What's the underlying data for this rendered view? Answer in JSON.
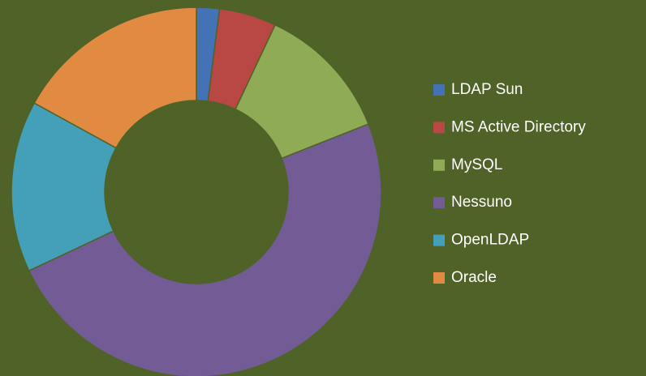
{
  "chart_data": {
    "type": "donut",
    "categories": [
      "LDAP Sun",
      "MS Active Directory",
      "MySQL",
      "Nessuno",
      "OpenLDAP",
      "Oracle"
    ],
    "values": [
      2,
      5,
      12,
      49,
      15,
      17
    ],
    "colors": [
      "#4472b6",
      "#b94743",
      "#8fab55",
      "#735b96",
      "#44a0b8",
      "#e08a42"
    ],
    "legend": "right"
  }
}
